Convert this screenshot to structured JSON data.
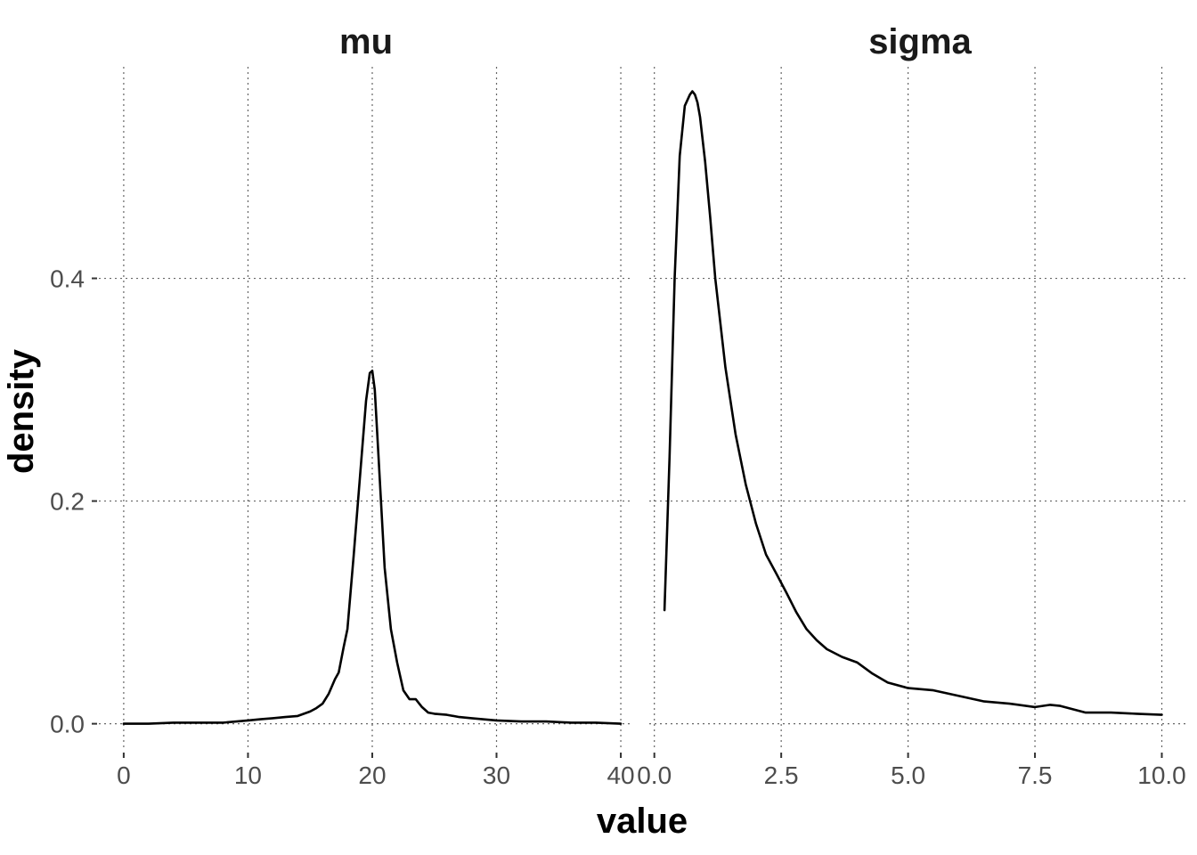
{
  "chart_data": {
    "type": "line",
    "xlabel": "value",
    "ylabel": "density",
    "ylim": [
      -0.0235,
      0.59
    ],
    "y_ticks": [
      0.0,
      0.2,
      0.4
    ],
    "y_tick_labels": [
      "0.0",
      "0.2",
      "0.4"
    ],
    "grid": true,
    "line_color": "#000000",
    "panels": [
      {
        "name": "mu",
        "xlim": [
          -2,
          41
        ],
        "x_ticks": [
          0,
          10,
          20,
          30,
          40
        ],
        "x_tick_labels": [
          "0",
          "10",
          "20",
          "30",
          "40"
        ],
        "x": [
          0,
          2,
          4,
          6,
          8,
          10,
          11,
          12,
          13,
          14,
          15,
          15.5,
          16,
          16.5,
          17,
          17.3,
          17.7,
          18,
          18.5,
          19,
          19.5,
          19.8,
          20,
          20.2,
          20.5,
          21,
          21.5,
          22,
          22.5,
          23,
          23.5,
          24,
          24.5,
          25,
          26,
          27,
          28,
          30,
          32,
          34,
          36,
          38,
          40
        ],
        "y": [
          0.0,
          0.0,
          0.001,
          0.001,
          0.001,
          0.003,
          0.004,
          0.005,
          0.006,
          0.007,
          0.011,
          0.014,
          0.018,
          0.027,
          0.04,
          0.046,
          0.069,
          0.085,
          0.15,
          0.22,
          0.29,
          0.315,
          0.317,
          0.3,
          0.24,
          0.14,
          0.085,
          0.055,
          0.03,
          0.022,
          0.022,
          0.015,
          0.01,
          0.009,
          0.008,
          0.006,
          0.005,
          0.003,
          0.002,
          0.002,
          0.001,
          0.001,
          0.0
        ]
      },
      {
        "name": "sigma",
        "xlim": [
          -0.1,
          10.5
        ],
        "x_ticks": [
          0.0,
          2.5,
          5.0,
          7.5,
          10.0
        ],
        "x_tick_labels": [
          "0.0",
          "2.5",
          "5.0",
          "7.5",
          "10.0"
        ],
        "x": [
          0.2,
          0.3,
          0.4,
          0.5,
          0.6,
          0.7,
          0.75,
          0.8,
          0.85,
          0.9,
          1.0,
          1.1,
          1.2,
          1.3,
          1.4,
          1.5,
          1.6,
          1.8,
          2.0,
          2.2,
          2.4,
          2.6,
          2.8,
          3.0,
          3.2,
          3.4,
          3.7,
          4.0,
          4.3,
          4.6,
          5.0,
          5.5,
          6.0,
          6.5,
          7.0,
          7.5,
          7.8,
          8.0,
          8.5,
          9.0,
          9.5,
          10.0
        ],
        "y": [
          0.102,
          0.24,
          0.4,
          0.51,
          0.555,
          0.565,
          0.568,
          0.565,
          0.558,
          0.545,
          0.505,
          0.455,
          0.4,
          0.36,
          0.32,
          0.29,
          0.26,
          0.215,
          0.18,
          0.152,
          0.135,
          0.118,
          0.1,
          0.085,
          0.075,
          0.067,
          0.06,
          0.055,
          0.045,
          0.037,
          0.032,
          0.03,
          0.025,
          0.02,
          0.018,
          0.015,
          0.017,
          0.016,
          0.01,
          0.01,
          0.009,
          0.008
        ]
      }
    ]
  }
}
